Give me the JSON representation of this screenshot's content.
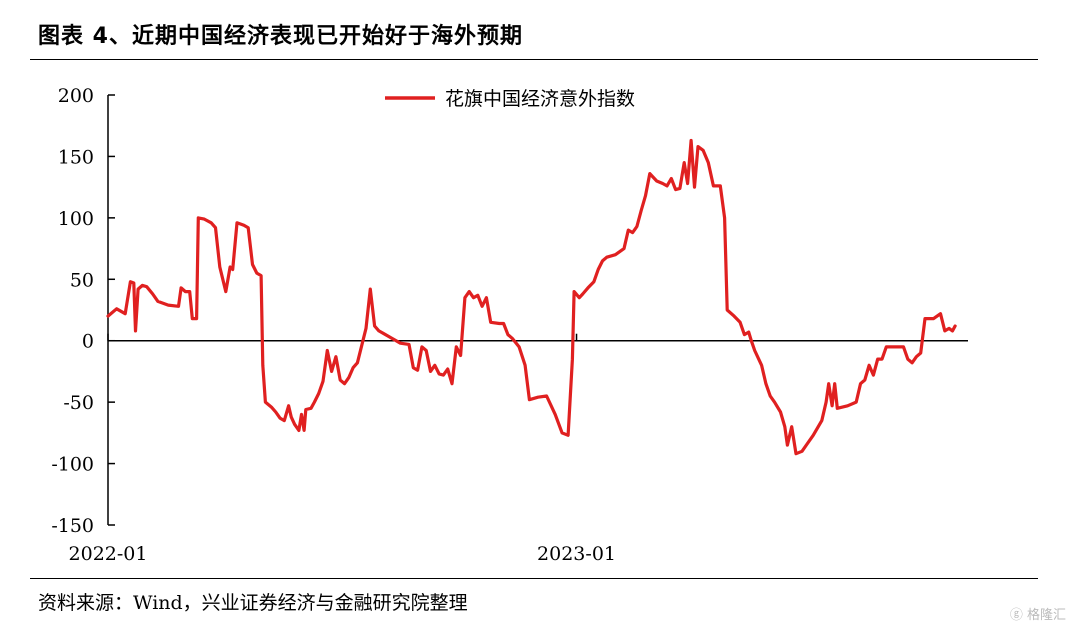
{
  "title": "图表 4、近期中国经济表现已开始好于海外预期",
  "source": "资料来源：Wind，兴业证券经济与金融研究院整理",
  "watermark": "格隆汇",
  "chart_data": {
    "type": "line",
    "title": "",
    "xlabel": "",
    "ylabel": "",
    "ylim": [
      -150,
      200
    ],
    "yticks": [
      200,
      150,
      100,
      50,
      0,
      -50,
      -100,
      -150
    ],
    "xticks": [
      {
        "label": "2022-01",
        "t": 0
      },
      {
        "label": "2023-01",
        "t": 0.5448
      }
    ],
    "legend": "top-center",
    "series": [
      {
        "name": "花旗中国经济意外指数",
        "color": "#e02020",
        "points": [
          [
            0.0,
            20
          ],
          [
            0.01,
            26
          ],
          [
            0.02,
            22
          ],
          [
            0.026,
            48
          ],
          [
            0.03,
            47
          ],
          [
            0.032,
            8
          ],
          [
            0.035,
            42
          ],
          [
            0.04,
            45
          ],
          [
            0.045,
            44
          ],
          [
            0.052,
            38
          ],
          [
            0.058,
            32
          ],
          [
            0.07,
            29
          ],
          [
            0.082,
            28
          ],
          [
            0.085,
            43
          ],
          [
            0.09,
            40
          ],
          [
            0.095,
            40
          ],
          [
            0.098,
            18
          ],
          [
            0.103,
            18
          ],
          [
            0.105,
            100
          ],
          [
            0.112,
            99
          ],
          [
            0.12,
            96
          ],
          [
            0.125,
            92
          ],
          [
            0.13,
            60
          ],
          [
            0.137,
            40
          ],
          [
            0.142,
            60
          ],
          [
            0.145,
            58
          ],
          [
            0.15,
            96
          ],
          [
            0.158,
            94
          ],
          [
            0.163,
            92
          ],
          [
            0.168,
            62
          ],
          [
            0.173,
            55
          ],
          [
            0.178,
            53
          ],
          [
            0.18,
            -20
          ],
          [
            0.183,
            -50
          ],
          [
            0.19,
            -54
          ],
          [
            0.195,
            -58
          ],
          [
            0.2,
            -63
          ],
          [
            0.205,
            -65
          ],
          [
            0.21,
            -53
          ],
          [
            0.213,
            -62
          ],
          [
            0.217,
            -68
          ],
          [
            0.222,
            -73
          ],
          [
            0.225,
            -60
          ],
          [
            0.228,
            -73
          ],
          [
            0.23,
            -56
          ],
          [
            0.236,
            -55
          ],
          [
            0.24,
            -50
          ],
          [
            0.245,
            -43
          ],
          [
            0.25,
            -33
          ],
          [
            0.255,
            -8
          ],
          [
            0.26,
            -25
          ],
          [
            0.265,
            -13
          ],
          [
            0.27,
            -32
          ],
          [
            0.275,
            -35
          ],
          [
            0.28,
            -30
          ],
          [
            0.285,
            -22
          ],
          [
            0.29,
            -18
          ],
          [
            0.295,
            -4
          ],
          [
            0.3,
            10
          ],
          [
            0.305,
            42
          ],
          [
            0.31,
            12
          ],
          [
            0.315,
            8
          ],
          [
            0.32,
            6
          ],
          [
            0.33,
            2
          ],
          [
            0.34,
            -2
          ],
          [
            0.35,
            -3
          ],
          [
            0.355,
            -22
          ],
          [
            0.36,
            -24
          ],
          [
            0.365,
            -5
          ],
          [
            0.37,
            -8
          ],
          [
            0.375,
            -25
          ],
          [
            0.38,
            -20
          ],
          [
            0.385,
            -27
          ],
          [
            0.39,
            -28
          ],
          [
            0.395,
            -23
          ],
          [
            0.4,
            -35
          ],
          [
            0.405,
            -5
          ],
          [
            0.41,
            -12
          ],
          [
            0.415,
            35
          ],
          [
            0.42,
            40
          ],
          [
            0.425,
            35
          ],
          [
            0.43,
            37
          ],
          [
            0.435,
            28
          ],
          [
            0.44,
            35
          ],
          [
            0.445,
            15
          ],
          [
            0.455,
            14
          ],
          [
            0.46,
            14
          ],
          [
            0.465,
            5
          ],
          [
            0.47,
            2
          ],
          [
            0.478,
            -5
          ],
          [
            0.485,
            -20
          ],
          [
            0.49,
            -48
          ],
          [
            0.5,
            -46
          ],
          [
            0.51,
            -45
          ],
          [
            0.52,
            -60
          ],
          [
            0.528,
            -75
          ],
          [
            0.535,
            -77
          ],
          [
            0.54,
            -15
          ],
          [
            0.542,
            40
          ],
          [
            0.548,
            35
          ],
          [
            0.552,
            38
          ],
          [
            0.558,
            43
          ],
          [
            0.565,
            48
          ],
          [
            0.57,
            58
          ],
          [
            0.575,
            65
          ],
          [
            0.58,
            68
          ],
          [
            0.59,
            70
          ],
          [
            0.6,
            75
          ],
          [
            0.605,
            90
          ],
          [
            0.61,
            88
          ],
          [
            0.615,
            93
          ],
          [
            0.62,
            106
          ],
          [
            0.625,
            118
          ],
          [
            0.63,
            136
          ],
          [
            0.638,
            130
          ],
          [
            0.645,
            128
          ],
          [
            0.65,
            126
          ],
          [
            0.655,
            132
          ],
          [
            0.66,
            123
          ],
          [
            0.665,
            124
          ],
          [
            0.67,
            145
          ],
          [
            0.674,
            128
          ],
          [
            0.678,
            163
          ],
          [
            0.682,
            125
          ],
          [
            0.686,
            158
          ],
          [
            0.692,
            155
          ],
          [
            0.698,
            145
          ],
          [
            0.704,
            126
          ],
          [
            0.712,
            126
          ],
          [
            0.717,
            100
          ],
          [
            0.72,
            25
          ],
          [
            0.728,
            20
          ],
          [
            0.735,
            15
          ],
          [
            0.74,
            5
          ],
          [
            0.745,
            7
          ],
          [
            0.748,
            0
          ],
          [
            0.752,
            -8
          ],
          [
            0.76,
            -20
          ],
          [
            0.765,
            -35
          ],
          [
            0.77,
            -45
          ],
          [
            0.775,
            -50
          ],
          [
            0.782,
            -58
          ],
          [
            0.787,
            -70
          ],
          [
            0.79,
            -85
          ],
          [
            0.795,
            -70
          ],
          [
            0.8,
            -92
          ],
          [
            0.807,
            -90
          ],
          [
            0.812,
            -85
          ],
          [
            0.82,
            -77
          ],
          [
            0.83,
            -65
          ],
          [
            0.835,
            -50
          ],
          [
            0.838,
            -35
          ],
          [
            0.842,
            -53
          ],
          [
            0.845,
            -35
          ],
          [
            0.848,
            -55
          ],
          [
            0.86,
            -53
          ],
          [
            0.87,
            -50
          ],
          [
            0.875,
            -35
          ],
          [
            0.88,
            -32
          ],
          [
            0.885,
            -20
          ],
          [
            0.89,
            -28
          ],
          [
            0.895,
            -15
          ],
          [
            0.9,
            -15
          ],
          [
            0.905,
            -5
          ],
          [
            0.915,
            -5
          ],
          [
            0.925,
            -5
          ],
          [
            0.93,
            -15
          ],
          [
            0.935,
            -18
          ],
          [
            0.94,
            -13
          ],
          [
            0.945,
            -10
          ],
          [
            0.95,
            18
          ],
          [
            0.96,
            18
          ],
          [
            0.968,
            22
          ],
          [
            0.973,
            8
          ],
          [
            0.978,
            10
          ],
          [
            0.982,
            8
          ],
          [
            0.985,
            12
          ]
        ]
      }
    ]
  }
}
